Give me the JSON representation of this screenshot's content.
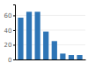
{
  "chart_data": {
    "type": "bar",
    "categories": [
      null,
      null,
      null,
      null,
      null,
      null,
      null,
      null
    ],
    "values": [
      57,
      65,
      65,
      38,
      25,
      8,
      6,
      6
    ],
    "color": "#2e75b6",
    "ylim": [
      0,
      75
    ],
    "yticks": [
      0,
      20,
      40,
      60
    ],
    "grid": true,
    "tick_labels": "y"
  }
}
